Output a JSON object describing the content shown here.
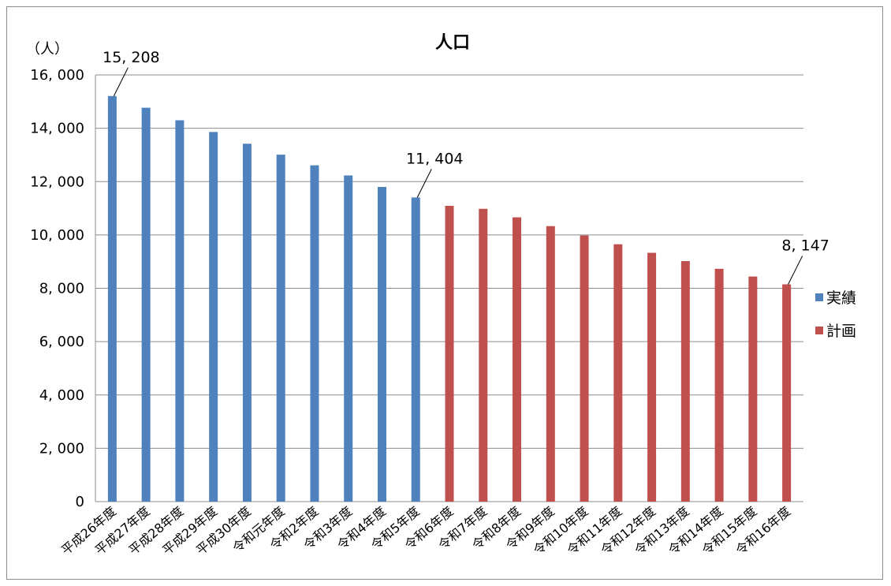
{
  "chart_data": {
    "type": "bar",
    "title": "人口",
    "unit_label": "（人）",
    "ylim": [
      0,
      16000
    ],
    "y_ticks": [
      "0",
      "2, 000",
      "4, 000",
      "6, 000",
      "8, 000",
      "10, 000",
      "12, 000",
      "14, 000",
      "16, 000"
    ],
    "grid": true,
    "legend_position": "right",
    "categories": [
      "平成26年度",
      "平成27年度",
      "平成28年度",
      "平成29年度",
      "平成30年度",
      "令和元年度",
      "令和2年度",
      "令和3年度",
      "令和4年度",
      "令和5年度",
      "令和6年度",
      "令和7年度",
      "令和8年度",
      "令和9年度",
      "令和10年度",
      "令和11年度",
      "令和12年度",
      "令和13年度",
      "令和14年度",
      "令和15年度",
      "令和16年度"
    ],
    "series": [
      {
        "name": "実績",
        "color": "#4f81bd",
        "values": [
          15208,
          14770,
          14300,
          13860,
          13420,
          13010,
          12610,
          12230,
          11800,
          11404,
          null,
          null,
          null,
          null,
          null,
          null,
          null,
          null,
          null,
          null,
          null
        ]
      },
      {
        "name": "計画",
        "color": "#c0504d",
        "values": [
          null,
          null,
          null,
          null,
          null,
          null,
          null,
          null,
          null,
          null,
          11090,
          10980,
          10660,
          10330,
          9980,
          9650,
          9330,
          9020,
          8730,
          8440,
          8147
        ]
      }
    ],
    "annotations": [
      {
        "category_index": 0,
        "text": "15, 208"
      },
      {
        "category_index": 9,
        "text": "11, 404"
      },
      {
        "category_index": 20,
        "text": "8, 147"
      }
    ]
  }
}
